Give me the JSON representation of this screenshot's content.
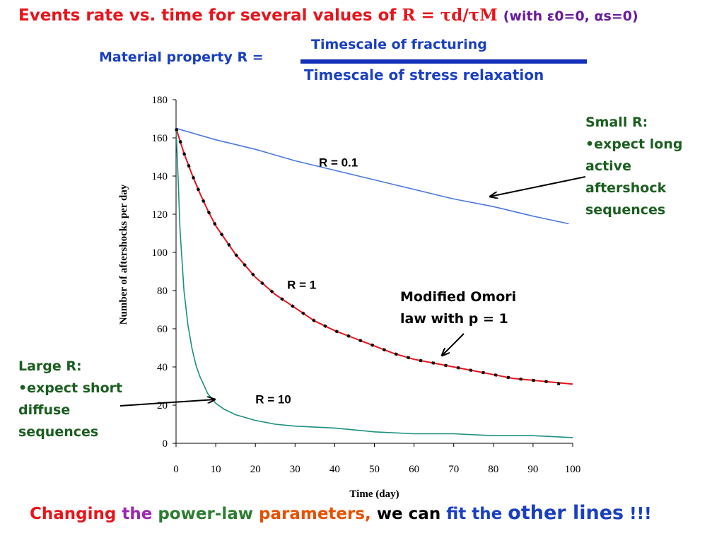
{
  "colors": {
    "red": "#e8141b",
    "blue_curve": "#4a78e0",
    "red_curve": "#e8141b",
    "teal_curve": "#1a9080",
    "black": "#000000"
  },
  "header": {
    "title_text": "Events rate vs. time for several values of",
    "title_symbol_r": "R =",
    "title_tau_ratio": "τd/τM",
    "title_with": "(with ε0=0, αs=0)"
  },
  "definition": {
    "label": "Material property R =",
    "numerator": "Timescale of fracturing",
    "denominator": "Timescale of stress relaxation"
  },
  "annotations": {
    "small_r": {
      "line1": "Small R:",
      "line2": "•expect long active aftershock sequences"
    },
    "large_r": {
      "line1": "Large R:",
      "line2": "•expect short diffuse sequences"
    },
    "omori": {
      "line1": "Modified Omori",
      "line2": "law with p = 1"
    }
  },
  "footer": {
    "w1": "Changing",
    "w2": "the",
    "w3": "power-law",
    "w4": "parameters,",
    "w5": "we can",
    "w6": "fit the",
    "w7": "other lines",
    "w8": "!!!"
  },
  "chart_data": {
    "type": "line",
    "xlabel": "Time (day)",
    "ylabel": "Number of aftershocks per day",
    "xlim": [
      0,
      100
    ],
    "ylim": [
      0,
      180
    ],
    "xticks": [
      "0",
      "10",
      "20",
      "30",
      "40",
      "50",
      "60",
      "70",
      "80",
      "90",
      "100"
    ],
    "yticks": [
      "0",
      "20",
      "40",
      "60",
      "80",
      "100",
      "120",
      "140",
      "160",
      "180"
    ],
    "series": [
      {
        "name": "R = 0.1",
        "color": "#4a78e0",
        "x": [
          0,
          10,
          20,
          30,
          40,
          50,
          60,
          70,
          80,
          90,
          99
        ],
        "y": [
          165,
          159,
          154,
          148,
          143,
          138,
          133,
          128,
          124,
          119,
          115
        ]
      },
      {
        "name": "R = 1",
        "color": "#e8141b",
        "x": [
          0,
          2,
          4,
          6,
          8,
          10,
          15,
          20,
          25,
          30,
          35,
          40,
          45,
          50,
          55,
          60,
          65,
          70,
          75,
          80,
          85,
          90,
          95,
          100
        ],
        "y": [
          165,
          152,
          141,
          131,
          122,
          114,
          99,
          87,
          78,
          71,
          64,
          59,
          55,
          51,
          47,
          44,
          42,
          40,
          38,
          36,
          34,
          33,
          32,
          31
        ]
      },
      {
        "name": "R = 10",
        "color": "#1a9080",
        "x": [
          0,
          0.5,
          1,
          2,
          3,
          4,
          5,
          6,
          8,
          10,
          12,
          15,
          20,
          25,
          30,
          40,
          50,
          60,
          70,
          80,
          90,
          100
        ],
        "y": [
          165,
          140,
          112,
          80,
          62,
          50,
          41,
          35,
          26,
          21,
          18,
          15,
          12,
          10,
          9,
          8,
          6,
          5,
          5,
          4,
          4,
          3
        ]
      },
      {
        "name": "Modified Omori law with p = 1",
        "color": "#000000",
        "style": "dashed",
        "x": [
          0,
          2,
          4,
          6,
          8,
          10,
          15,
          20,
          25,
          30,
          35,
          40,
          45,
          50,
          55,
          60,
          65,
          70,
          75,
          80,
          85,
          90,
          95,
          97
        ],
        "y": [
          165,
          152,
          141,
          131,
          122,
          114,
          99,
          87,
          78,
          71,
          64,
          59,
          55,
          51,
          47,
          44,
          42,
          40,
          38,
          36,
          34,
          33,
          32,
          31
        ]
      }
    ],
    "curve_labels": [
      {
        "text": "R = 0.1",
        "x": 36,
        "y": 145
      },
      {
        "text": "R = 1",
        "x": 28,
        "y": 81
      },
      {
        "text": "R = 10",
        "x": 20,
        "y": 21
      }
    ],
    "grid": false
  }
}
